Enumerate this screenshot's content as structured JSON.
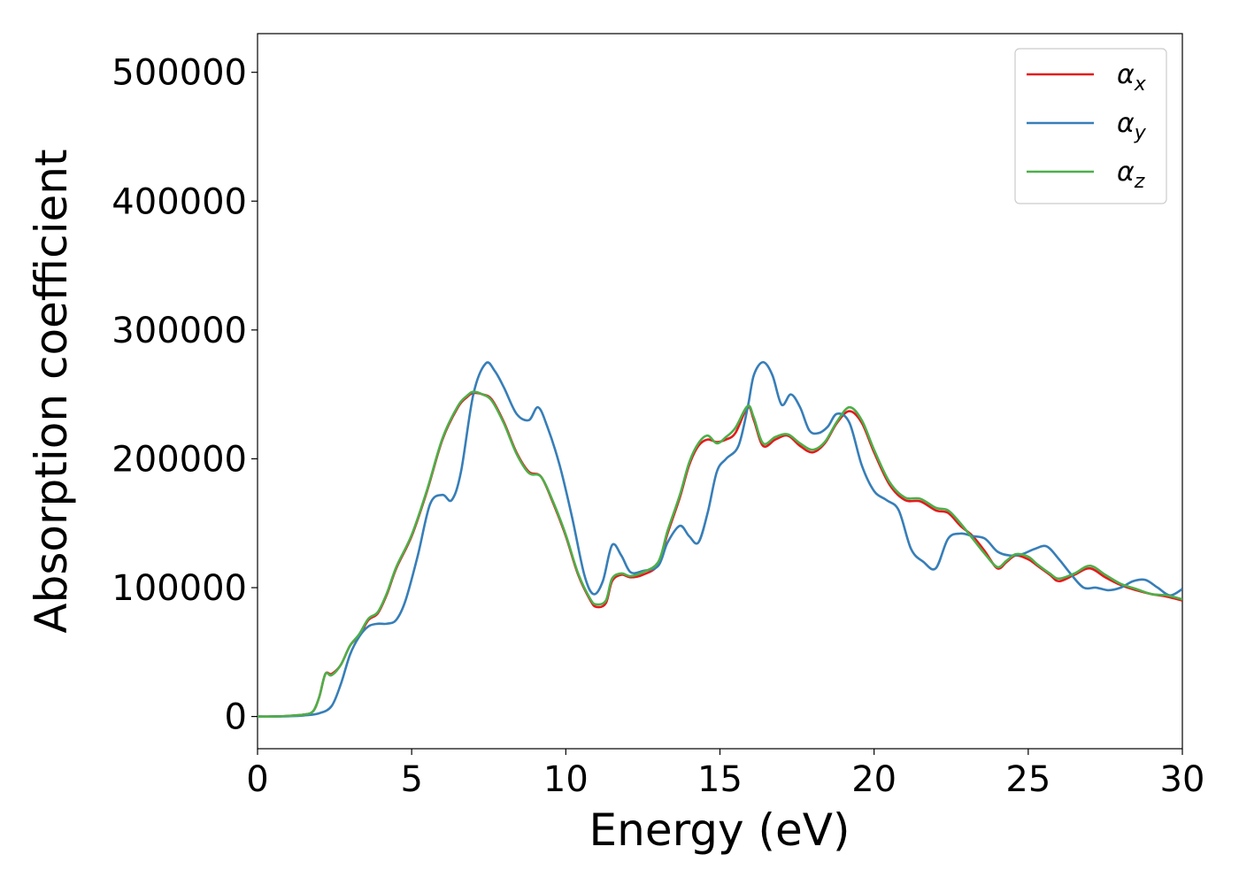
{
  "chart_data": {
    "type": "line",
    "title": "",
    "xlabel": "Energy (eV)",
    "ylabel": "Absorption coefficient",
    "xlim": [
      0,
      30
    ],
    "ylim": [
      -25000,
      530000
    ],
    "xticks": [
      0,
      5,
      10,
      15,
      20,
      25,
      30
    ],
    "yticks": [
      0,
      100000,
      200000,
      300000,
      400000,
      500000
    ],
    "grid": false,
    "legend": "top-right",
    "series": [
      {
        "name": "αx",
        "label_base": "α",
        "label_sub": "x",
        "color": "#e41a1c",
        "x": [
          0,
          0.5,
          1,
          1.5,
          1.8,
          2.0,
          2.2,
          2.4,
          2.7,
          3.0,
          3.3,
          3.6,
          3.9,
          4.2,
          4.5,
          5.0,
          5.5,
          6.0,
          6.5,
          6.8,
          7.0,
          7.3,
          7.6,
          8.0,
          8.4,
          8.8,
          9.2,
          9.6,
          10.0,
          10.4,
          10.8,
          11.0,
          11.3,
          11.5,
          11.8,
          12.1,
          12.5,
          13.0,
          13.3,
          13.7,
          14.0,
          14.3,
          14.6,
          14.9,
          15.2,
          15.5,
          15.9,
          16.1,
          16.4,
          16.8,
          17.2,
          17.6,
          18.0,
          18.4,
          18.8,
          19.2,
          19.6,
          20.0,
          20.5,
          21.0,
          21.5,
          22.0,
          22.4,
          22.8,
          23.2,
          23.6,
          24.0,
          24.3,
          24.6,
          25.0,
          25.3,
          25.7,
          26.0,
          26.5,
          27.0,
          27.5,
          28.0,
          28.5,
          29.0,
          29.5,
          30.0
        ],
        "y": [
          0,
          0,
          500,
          1500,
          4000,
          15000,
          33000,
          33000,
          40000,
          55000,
          63000,
          75000,
          80000,
          95000,
          115000,
          140000,
          175000,
          215000,
          240000,
          248000,
          251000,
          250000,
          246000,
          228000,
          205000,
          190000,
          186000,
          165000,
          140000,
          110000,
          90000,
          85000,
          88000,
          105000,
          110000,
          108000,
          110000,
          118000,
          142000,
          170000,
          195000,
          210000,
          215000,
          213000,
          215000,
          220000,
          240000,
          230000,
          210000,
          215000,
          218000,
          210000,
          205000,
          212000,
          228000,
          237000,
          228000,
          205000,
          180000,
          168000,
          167000,
          160000,
          158000,
          148000,
          140000,
          128000,
          115000,
          120000,
          125000,
          122000,
          117000,
          110000,
          105000,
          110000,
          115000,
          108000,
          102000,
          98000,
          95000,
          93000,
          90000
        ]
      },
      {
        "name": "αy",
        "label_base": "α",
        "label_sub": "y",
        "color": "#377eb8",
        "x": [
          0,
          0.5,
          1,
          1.5,
          2.0,
          2.4,
          2.7,
          3.0,
          3.3,
          3.6,
          3.9,
          4.2,
          4.5,
          4.8,
          5.2,
          5.6,
          6.0,
          6.3,
          6.6,
          7.0,
          7.4,
          7.7,
          8.0,
          8.4,
          8.8,
          9.1,
          9.4,
          9.8,
          10.2,
          10.6,
          10.9,
          11.2,
          11.5,
          11.8,
          12.1,
          12.5,
          13.0,
          13.3,
          13.7,
          14.0,
          14.3,
          14.6,
          14.9,
          15.2,
          15.6,
          15.9,
          16.1,
          16.4,
          16.7,
          17.0,
          17.3,
          17.6,
          17.9,
          18.2,
          18.5,
          18.8,
          19.2,
          19.6,
          20.0,
          20.4,
          20.8,
          21.2,
          21.6,
          22.0,
          22.4,
          22.8,
          23.2,
          23.6,
          24.0,
          24.4,
          24.8,
          25.2,
          25.6,
          26.0,
          26.4,
          26.8,
          27.2,
          27.6,
          28.0,
          28.4,
          28.8,
          29.2,
          29.6,
          30.0
        ],
        "y": [
          0,
          0,
          200,
          800,
          2500,
          8000,
          25000,
          48000,
          62000,
          70000,
          72000,
          72000,
          75000,
          90000,
          125000,
          165000,
          172000,
          168000,
          190000,
          250000,
          274000,
          268000,
          255000,
          235000,
          230000,
          240000,
          225000,
          195000,
          155000,
          110000,
          95000,
          105000,
          133000,
          125000,
          112000,
          113000,
          117000,
          135000,
          148000,
          140000,
          135000,
          158000,
          190000,
          200000,
          210000,
          240000,
          265000,
          275000,
          265000,
          242000,
          250000,
          240000,
          222000,
          220000,
          225000,
          235000,
          228000,
          195000,
          175000,
          168000,
          160000,
          130000,
          120000,
          115000,
          138000,
          142000,
          140000,
          138000,
          128000,
          125000,
          126000,
          130000,
          132000,
          122000,
          110000,
          100000,
          100000,
          98000,
          100000,
          105000,
          106000,
          100000,
          94000,
          99000
        ]
      },
      {
        "name": "αz",
        "label_base": "α",
        "label_sub": "z",
        "color": "#4daf4a",
        "x": [
          0,
          0.5,
          1,
          1.5,
          1.8,
          2.0,
          2.2,
          2.4,
          2.7,
          3.0,
          3.3,
          3.6,
          3.9,
          4.2,
          4.5,
          5.0,
          5.5,
          6.0,
          6.5,
          6.8,
          7.0,
          7.3,
          7.6,
          8.0,
          8.4,
          8.8,
          9.2,
          9.6,
          10.0,
          10.4,
          10.8,
          11.0,
          11.3,
          11.5,
          11.8,
          12.1,
          12.5,
          13.0,
          13.3,
          13.7,
          14.0,
          14.3,
          14.6,
          14.9,
          15.2,
          15.5,
          15.9,
          16.1,
          16.4,
          16.8,
          17.2,
          17.6,
          18.0,
          18.4,
          18.8,
          19.2,
          19.6,
          20.0,
          20.5,
          21.0,
          21.5,
          22.0,
          22.4,
          22.8,
          23.2,
          23.6,
          24.0,
          24.3,
          24.6,
          25.0,
          25.3,
          25.7,
          26.0,
          26.5,
          27.0,
          27.5,
          28.0,
          28.5,
          29.0,
          29.5,
          30.0
        ],
        "y": [
          0,
          0,
          500,
          1500,
          4000,
          15000,
          33000,
          32000,
          40000,
          55000,
          64000,
          76000,
          81000,
          96000,
          116000,
          141000,
          176000,
          216000,
          241000,
          249000,
          252000,
          250000,
          245000,
          227000,
          204000,
          189000,
          186000,
          166000,
          141000,
          111000,
          91000,
          87000,
          90000,
          107000,
          111000,
          109000,
          112000,
          120000,
          144000,
          172000,
          197000,
          212000,
          218000,
          212000,
          217000,
          224000,
          241000,
          232000,
          212000,
          217000,
          219000,
          212000,
          207000,
          213000,
          229000,
          240000,
          230000,
          207000,
          182000,
          170000,
          169000,
          162000,
          160000,
          150000,
          138000,
          126000,
          116000,
          121000,
          126000,
          124000,
          118000,
          111000,
          107000,
          111000,
          117000,
          110000,
          103000,
          99000,
          95000,
          94000,
          91000
        ]
      }
    ]
  }
}
